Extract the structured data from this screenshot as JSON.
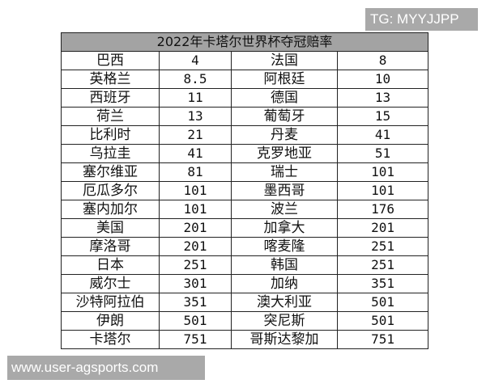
{
  "title": "2022年卡塔尔世界杯夺冠赔率",
  "watermark_top": "TG: MYYJJPP",
  "watermark_bottom": "www.user-agsports.com",
  "colors": {
    "header_bg": "#a3a3a3",
    "watermark_bg": "#a9a9a9"
  },
  "rows": [
    {
      "team1": "巴西",
      "odds1": "4",
      "team2": "法国",
      "odds2": "8"
    },
    {
      "team1": "英格兰",
      "odds1": "8.5",
      "team2": "阿根廷",
      "odds2": "10"
    },
    {
      "team1": "西班牙",
      "odds1": "11",
      "team2": "德国",
      "odds2": "13"
    },
    {
      "team1": "荷兰",
      "odds1": "13",
      "team2": "葡萄牙",
      "odds2": "15"
    },
    {
      "team1": "比利时",
      "odds1": "21",
      "team2": "丹麦",
      "odds2": "41"
    },
    {
      "team1": "乌拉圭",
      "odds1": "41",
      "team2": "克罗地亚",
      "odds2": "51"
    },
    {
      "team1": "塞尔维亚",
      "odds1": "81",
      "team2": "瑞士",
      "odds2": "101"
    },
    {
      "team1": "厄瓜多尔",
      "odds1": "101",
      "team2": "墨西哥",
      "odds2": "101"
    },
    {
      "team1": "塞内加尔",
      "odds1": "101",
      "team2": "波兰",
      "odds2": "176"
    },
    {
      "team1": "美国",
      "odds1": "201",
      "team2": "加拿大",
      "odds2": "201"
    },
    {
      "team1": "摩洛哥",
      "odds1": "201",
      "team2": "喀麦隆",
      "odds2": "251"
    },
    {
      "team1": "日本",
      "odds1": "251",
      "team2": "韩国",
      "odds2": "251"
    },
    {
      "team1": "威尔士",
      "odds1": "301",
      "team2": "加纳",
      "odds2": "351"
    },
    {
      "team1": "沙特阿拉伯",
      "odds1": "351",
      "team2": "澳大利亚",
      "odds2": "501"
    },
    {
      "team1": "伊朗",
      "odds1": "501",
      "team2": "突尼斯",
      "odds2": "501"
    },
    {
      "team1": "卡塔尔",
      "odds1": "751",
      "team2": "哥斯达黎加",
      "odds2": "751"
    }
  ]
}
